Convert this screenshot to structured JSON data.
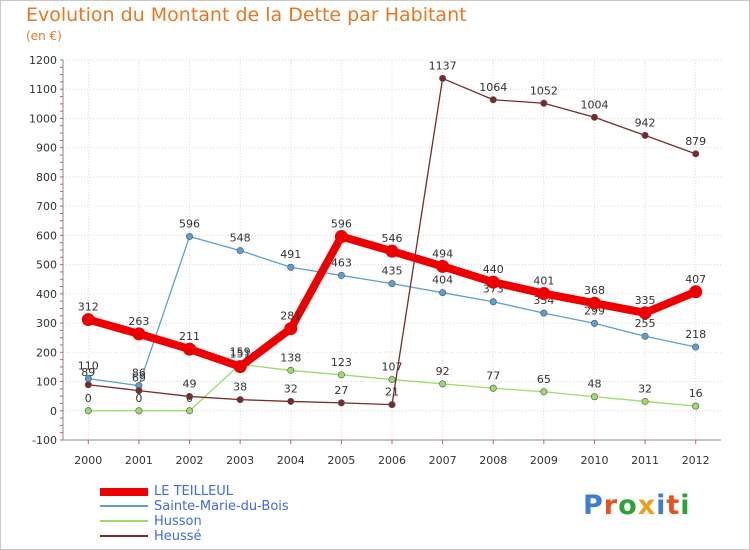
{
  "title": "Evolution du Montant de la Dette par Habitant",
  "unit_label": "(en €)",
  "logo_text": "Proxiti",
  "logo_colors": [
    "#3a7fd5",
    "#e8501e",
    "#2aa33a",
    "#e8a31e",
    "#3a7fd5",
    "#e8501e",
    "#2aa33a"
  ],
  "chart_data": {
    "type": "line",
    "x": [
      "2000",
      "2001",
      "2002",
      "2003",
      "2004",
      "2005",
      "2006",
      "2007",
      "2008",
      "2009",
      "2010",
      "2011",
      "2012"
    ],
    "ylim": [
      -100,
      1200
    ],
    "yticks": [
      -100,
      0,
      100,
      200,
      300,
      400,
      500,
      600,
      700,
      800,
      900,
      1000,
      1100,
      1200
    ],
    "grid": true,
    "legend_position": "bottom-left",
    "series": [
      {
        "name": "LE TEILLEUL",
        "color": "#ee0000",
        "values": [
          312,
          263,
          211,
          151,
          281,
          596,
          546,
          494,
          440,
          401,
          368,
          335,
          407
        ],
        "labels": [
          "312",
          "263",
          "211",
          "151",
          "281",
          "596",
          "546",
          "494",
          "440",
          "401",
          "368",
          "335",
          "407"
        ]
      },
      {
        "name": "Sainte-Marie-du-Bois",
        "color": "#5c9fd6",
        "values": [
          110,
          86,
          596,
          548,
          491,
          463,
          435,
          404,
          373,
          334,
          299,
          255,
          218
        ],
        "labels": [
          "110",
          "86",
          "596",
          "548",
          "491",
          "463",
          "435",
          "404",
          "373",
          "334",
          "299",
          "255",
          "218"
        ]
      },
      {
        "name": "Husson",
        "color": "#99dd66",
        "values": [
          0,
          0,
          0,
          159,
          138,
          123,
          107,
          92,
          77,
          65,
          48,
          32,
          16
        ],
        "labels": [
          "0",
          "0",
          "0",
          "159",
          "138",
          "123",
          "107",
          "92",
          "77",
          "65",
          "48",
          "32",
          "16"
        ]
      },
      {
        "name": "Heussé",
        "color": "#7a2a2a",
        "values": [
          89,
          69,
          49,
          38,
          32,
          27,
          21,
          1137,
          1064,
          1052,
          1004,
          942,
          879
        ],
        "labels": [
          "89",
          "69",
          "49",
          "38",
          "32",
          "27",
          "21",
          "1137",
          "1064",
          "1052",
          "1004",
          "942",
          "879"
        ]
      }
    ]
  }
}
